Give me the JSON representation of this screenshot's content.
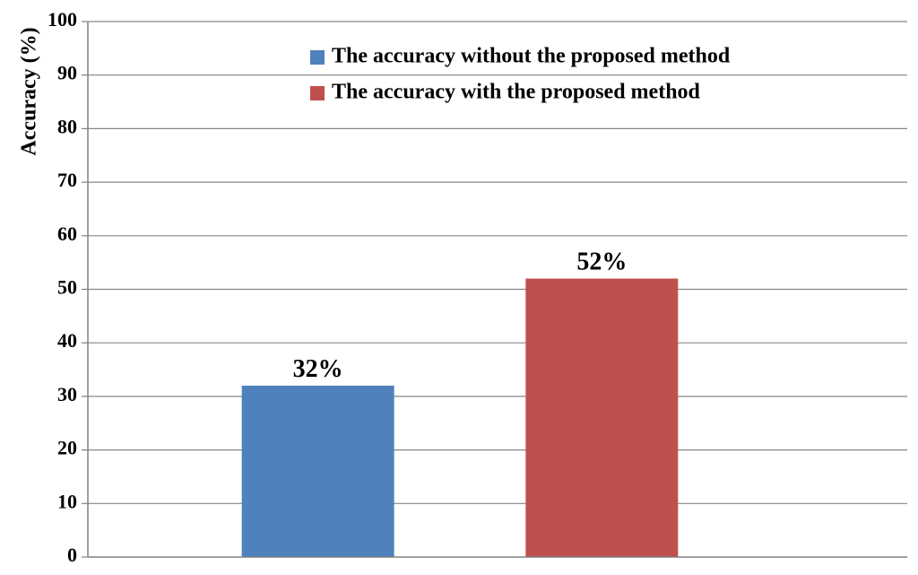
{
  "chart_data": {
    "type": "bar",
    "title": "",
    "xlabel": "",
    "ylabel": "Accuracy (%)",
    "ylim": [
      0,
      100
    ],
    "yticks": [
      "0",
      "10",
      "20",
      "30",
      "40",
      "50",
      "60",
      "70",
      "80",
      "90",
      "100"
    ],
    "grid": true,
    "legend_position": "top-right",
    "series": [
      {
        "name": "The accuracy without the proposed method",
        "value": 32,
        "label": "32%",
        "color": "#4F81BD"
      },
      {
        "name": "The accuracy with the proposed method",
        "value": 52,
        "label": "52%",
        "color": "#C0504D"
      }
    ]
  }
}
